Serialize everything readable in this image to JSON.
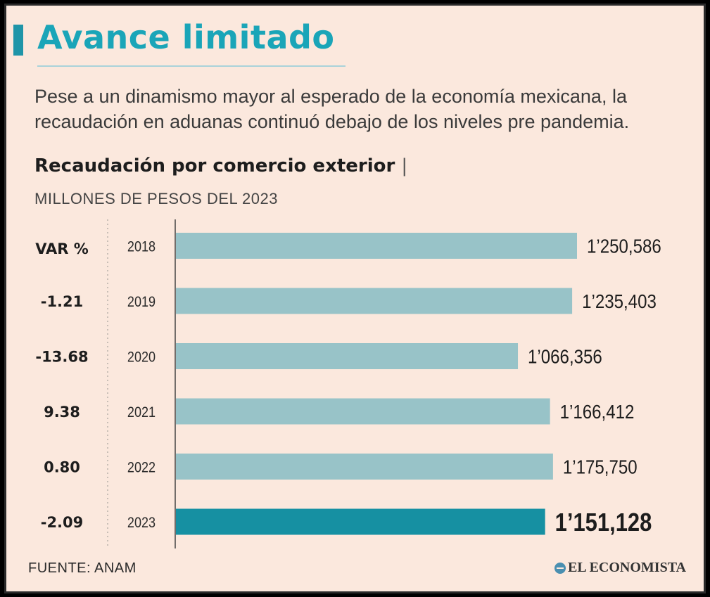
{
  "header": {
    "title": "Avance limitado",
    "subtitle": "Pese a un dinamismo mayor al esperado de la economía mexicana, la recaudación en aduanas continuó debajo de los niveles pre pandemia."
  },
  "chart_data": {
    "type": "bar",
    "orientation": "horizontal",
    "title": "Recaudación por comercio exterior",
    "title_separator": "|",
    "units": "MILLONES DE PESOS DEL 2023",
    "var_header": "VAR %",
    "categories": [
      "2018",
      "2019",
      "2020",
      "2021",
      "2022",
      "2023"
    ],
    "values": [
      1250586,
      1235403,
      1066356,
      1166412,
      1175750,
      1151128
    ],
    "value_labels": [
      "1’250,586",
      "1’235,403",
      "1’066,356",
      "1’166,412",
      "1’175,750",
      "1’151,128"
    ],
    "var_pct": [
      "",
      "-1.21",
      "-13.68",
      "9.38",
      "0.80",
      "-2.09"
    ],
    "highlight_index": 5,
    "colors": {
      "bar": "#98c3c8",
      "highlight": "#1690a2"
    },
    "xlim": [
      0,
      1250586
    ],
    "legend": "none",
    "grid": false
  },
  "footer": {
    "source": "FUENTE: ANAM",
    "brand": "EL ECONOMISTA"
  }
}
